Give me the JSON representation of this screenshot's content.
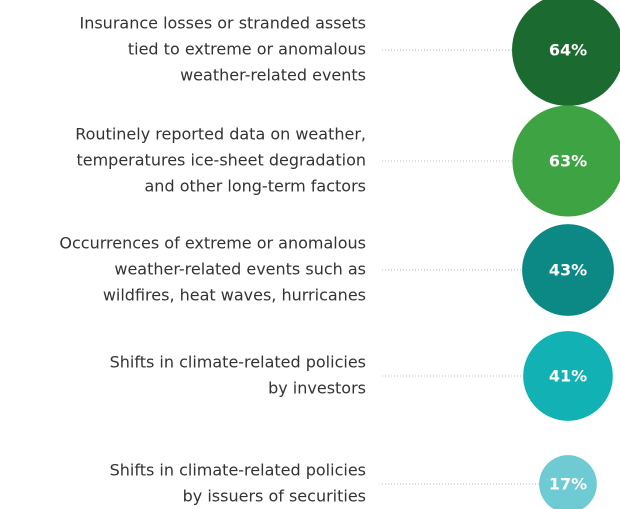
{
  "chart_data": {
    "type": "bubble",
    "categories": [
      [
        "Insurance losses or stranded assets",
        "tied to extreme or anomalous",
        "weather-related events"
      ],
      [
        "Routinely reported data on weather,",
        "temperatures ice-sheet degradation",
        "and other long-term factors"
      ],
      [
        "Occurrences of extreme or anomalous",
        "weather-related events such as",
        "wildfires, heat waves, hurricanes"
      ],
      [
        "Shifts in climate-related policies",
        "by investors"
      ],
      [
        "Shifts in climate-related policies",
        "by issuers of securities"
      ]
    ],
    "values": [
      64,
      63,
      43,
      41,
      17
    ],
    "value_labels": [
      "64%",
      "63%",
      "43%",
      "41%",
      "17%"
    ],
    "colors": [
      "#1b6b31",
      "#3ea343",
      "#0d8985",
      "#12b2b4",
      "#6ecad3"
    ]
  }
}
